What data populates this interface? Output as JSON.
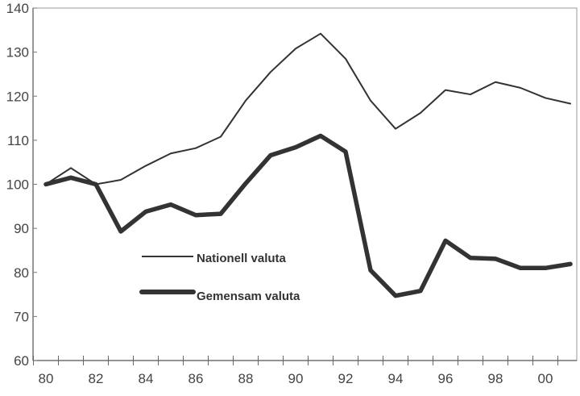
{
  "chart_data": {
    "type": "line",
    "title": "",
    "xlabel": "",
    "ylabel": "",
    "x": [
      1980,
      1981,
      1982,
      1983,
      1984,
      1985,
      1986,
      1987,
      1988,
      1989,
      1990,
      1991,
      1992,
      1993,
      1994,
      1995,
      1996,
      1997,
      1998,
      1999,
      2000,
      2001
    ],
    "xtick_labels": [
      "80",
      "82",
      "84",
      "86",
      "88",
      "90",
      "92",
      "94",
      "96",
      "98",
      "00"
    ],
    "ytick_labels": [
      "60",
      "70",
      "80",
      "90",
      "100",
      "110",
      "120",
      "130",
      "140"
    ],
    "ylim": [
      60,
      140
    ],
    "grid": false,
    "legend_position": "center-left",
    "series": [
      {
        "name": "Nationell valuta",
        "color": "#333333",
        "style": "thin",
        "values": [
          100,
          103.7,
          100,
          101,
          104.2,
          107,
          108.2,
          110.8,
          119,
          125.5,
          130.8,
          134.2,
          128.5,
          119,
          112.6,
          116.2,
          121.4,
          120.4,
          123.2,
          121.9,
          119.6,
          118.3
        ]
      },
      {
        "name": "Gemensam valuta",
        "color": "#333333",
        "style": "thick",
        "values": [
          100,
          101.5,
          100,
          89.3,
          93.8,
          95.4,
          93,
          93.3,
          100.2,
          106.6,
          108.4,
          111,
          107.4,
          80.5,
          74.7,
          75.8,
          87.2,
          83.3,
          83.1,
          81,
          81,
          81.9
        ]
      }
    ]
  }
}
